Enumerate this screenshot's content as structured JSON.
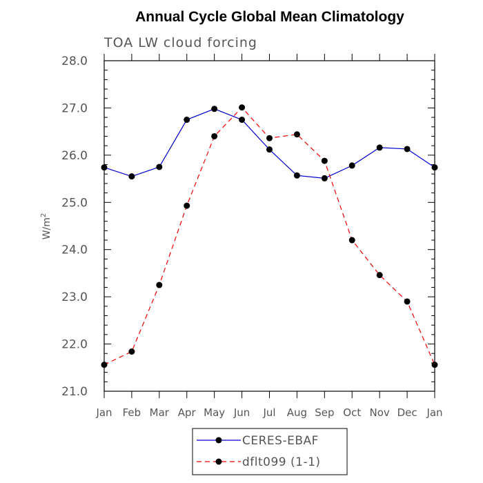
{
  "chart_data": {
    "type": "line",
    "title": "Annual Cycle Global Mean Climatology",
    "subtitle": "TOA LW cloud forcing",
    "ylabel": "W/m",
    "ylabel_sup": "2",
    "ylim": [
      21.0,
      28.0
    ],
    "yticks": [
      "21.0",
      "22.0",
      "23.0",
      "24.0",
      "25.0",
      "26.0",
      "27.0",
      "28.0"
    ],
    "categories": [
      "Jan",
      "Feb",
      "Mar",
      "Apr",
      "May",
      "Jun",
      "Jul",
      "Aug",
      "Sep",
      "Oct",
      "Nov",
      "Dec",
      "Jan"
    ],
    "series": [
      {
        "name": "CERES-EBAF",
        "color": "#0000cc",
        "dash": "solid",
        "values": [
          25.74,
          25.55,
          25.75,
          26.75,
          26.98,
          26.75,
          26.12,
          25.57,
          25.51,
          25.78,
          26.16,
          26.13,
          25.74
        ]
      },
      {
        "name": "dflt099 (1-1)",
        "color": "#ee0000",
        "dash": "dashed",
        "values": [
          21.56,
          21.84,
          23.25,
          24.93,
          26.4,
          27.01,
          26.36,
          26.44,
          25.88,
          24.2,
          23.46,
          22.9,
          21.56
        ]
      }
    ],
    "legend_position": "bottom-center"
  }
}
